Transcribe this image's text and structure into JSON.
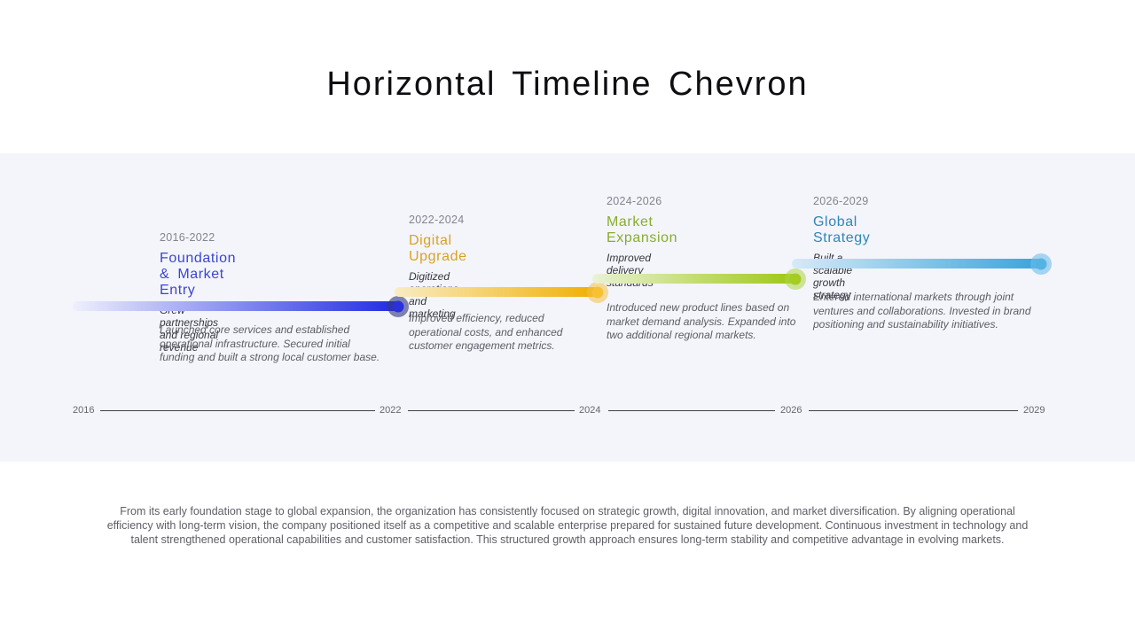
{
  "slide": {
    "title": "Horizontal Timeline Chevron",
    "background": "#ffffff",
    "band_background": "#f4f4fb",
    "axis_line_color": "#3f414a"
  },
  "timeline": {
    "phases": [
      {
        "period": "2016-2022",
        "title": "Foundation & Market Entry",
        "subtitle": "Grew partnerships and regional revenue",
        "description": "Launched core services and established operational infrastructure. Secured initial funding and built a strong local customer base.",
        "title_color": "#3a46d2",
        "bar_from": "#eef0fc",
        "bar_to": "#1e2ae2",
        "marker_fill": "#2a30e0",
        "marker_ring": "rgba(52,58,128,0.62)"
      },
      {
        "period": "2022-2024",
        "title": "Digital Upgrade",
        "subtitle": "Digitized operations and marketing",
        "description": "Improved efficiency, reduced operational costs, and enhanced customer engagement metrics.",
        "title_color": "#d6a41e",
        "bar_from": "#f9ecc4",
        "bar_to": "#f0ae00",
        "marker_fill": "#f6c233",
        "marker_ring": "rgba(244,193,70,0.55)"
      },
      {
        "period": "2024-2026",
        "title": "Market Expansion",
        "subtitle": "Improved delivery standards",
        "description": "Introduced new product lines based on market demand analysis. Expanded into two additional regional markets.",
        "title_color": "#88ad2b",
        "bar_from": "#eaf2d4",
        "bar_to": "#9cc712",
        "marker_fill": "#a4cc21",
        "marker_ring": "rgba(173,214,70,0.55)"
      },
      {
        "period": "2026-2029",
        "title": "Global Strategy",
        "subtitle": "Built a scalable growth strategy",
        "description": "Entered international markets through joint ventures and collaborations. Invested in brand positioning and sustainability initiatives.",
        "title_color": "#2d88ba",
        "bar_from": "#d5eaf8",
        "bar_to": "#38a3da",
        "marker_fill": "#55b3e3",
        "marker_ring": "rgba(110,190,235,0.6)"
      }
    ],
    "axis": {
      "years": [
        "2016",
        "2022",
        "2024",
        "2026",
        "2029"
      ]
    }
  },
  "summary": "From its early foundation stage to global expansion, the organization has consistently focused on strategic growth, digital innovation, and market diversification. By aligning operational efficiency with long-term vision, the company positioned itself as a competitive and scalable enterprise prepared for sustained future development. Continuous investment in technology and talent strengthened operational capabilities and customer satisfaction. This structured growth approach ensures long-term stability and competitive advantage in evolving markets."
}
